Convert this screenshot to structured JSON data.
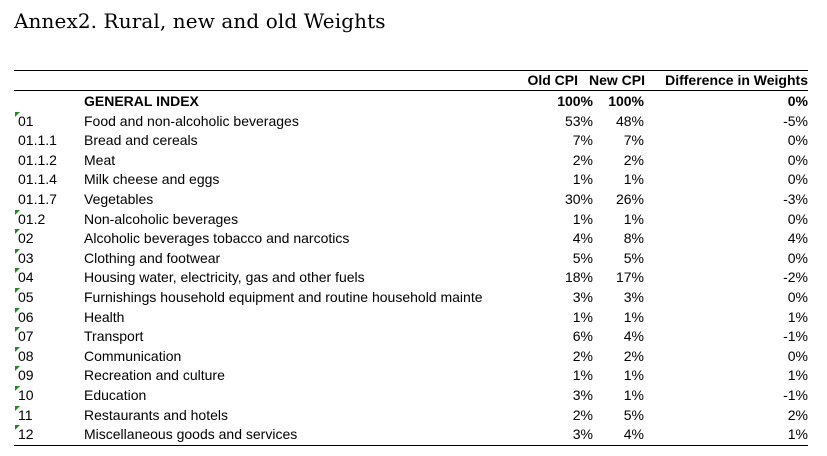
{
  "title": "Annex2. Rural, new and old Weights",
  "headers": {
    "old_cpi": "Old CPI",
    "new_cpi": "New CPI",
    "difference": "Difference in Weights"
  },
  "rows": [
    {
      "code": "",
      "desc": "GENERAL INDEX",
      "old": "100%",
      "new": "100%",
      "diff": "0%",
      "bold": true,
      "marker": false
    },
    {
      "code": "01",
      "desc": "Food and non-alcoholic beverages",
      "old": "53%",
      "new": "48%",
      "diff": "-5%",
      "marker": true
    },
    {
      "code": "01.1.1",
      "desc": "Bread and cereals",
      "old": "7%",
      "new": "7%",
      "diff": "0%",
      "marker": false
    },
    {
      "code": "01.1.2",
      "desc": "Meat",
      "old": "2%",
      "new": "2%",
      "diff": "0%",
      "marker": false
    },
    {
      "code": "01.1.4",
      "desc": "Milk cheese and eggs",
      "old": "1%",
      "new": "1%",
      "diff": "0%",
      "marker": false
    },
    {
      "code": "01.1.7",
      "desc": "Vegetables",
      "old": "30%",
      "new": "26%",
      "diff": "-3%",
      "marker": false
    },
    {
      "code": "01.2",
      "desc": "Non-alcoholic beverages",
      "old": "1%",
      "new": "1%",
      "diff": "0%",
      "marker": true
    },
    {
      "code": "02",
      "desc": "Alcoholic beverages tobacco and narcotics",
      "old": "4%",
      "new": "8%",
      "diff": "4%",
      "marker": true
    },
    {
      "code": "03",
      "desc": "Clothing and footwear",
      "old": "5%",
      "new": "5%",
      "diff": "0%",
      "marker": true
    },
    {
      "code": "04",
      "desc": "Housing water,  electricity,  gas and other fuels",
      "old": "18%",
      "new": "17%",
      "diff": "-2%",
      "marker": true
    },
    {
      "code": "05",
      "desc": "Furnishings  household equipment and routine household mainte",
      "old": "3%",
      "new": "3%",
      "diff": "0%",
      "marker": true
    },
    {
      "code": "06",
      "desc": "Health",
      "old": "1%",
      "new": "1%",
      "diff": "1%",
      "marker": true
    },
    {
      "code": "07",
      "desc": "Transport",
      "old": "6%",
      "new": "4%",
      "diff": "-1%",
      "marker": true
    },
    {
      "code": "08",
      "desc": "Communication",
      "old": "2%",
      "new": "2%",
      "diff": "0%",
      "marker": true
    },
    {
      "code": "09",
      "desc": "Recreation and culture",
      "old": "1%",
      "new": "1%",
      "diff": "1%",
      "marker": true
    },
    {
      "code": "10",
      "desc": "Education",
      "old": "3%",
      "new": "1%",
      "diff": "-1%",
      "marker": true
    },
    {
      "code": "11",
      "desc": "Restaurants and hotels",
      "old": "2%",
      "new": "5%",
      "diff": "2%",
      "marker": true
    },
    {
      "code": "12",
      "desc": "Miscellaneous goods and services",
      "old": "3%",
      "new": "4%",
      "diff": "1%",
      "marker": true
    }
  ]
}
